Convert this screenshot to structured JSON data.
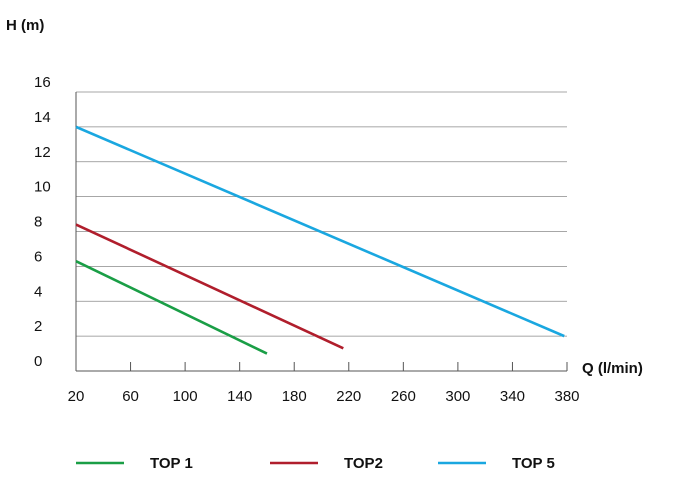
{
  "chart_data": {
    "type": "line",
    "title": "",
    "xlabel": "Q (l/min)",
    "ylabel": "H (m)",
    "xlim": [
      20,
      380
    ],
    "ylim": [
      0,
      16
    ],
    "x_ticks": [
      "20",
      "60",
      "100",
      "140",
      "180",
      "220",
      "260",
      "300",
      "340",
      "380"
    ],
    "y_ticks": [
      "0",
      "2",
      "4",
      "6",
      "8",
      "10",
      "12",
      "14",
      "16"
    ],
    "grid": "horizontal",
    "legend_position": "bottom",
    "series": [
      {
        "name": "TOP 1",
        "color": "#1a9e46",
        "x": [
          20,
          160
        ],
        "y": [
          6.3,
          1.0
        ]
      },
      {
        "name": "TOP2",
        "color": "#b01e2c",
        "x": [
          20,
          216
        ],
        "y": [
          8.4,
          1.3
        ]
      },
      {
        "name": "TOP 5",
        "color": "#1aa7e0",
        "x": [
          20,
          378
        ],
        "y": [
          14.0,
          2.0
        ]
      }
    ]
  }
}
